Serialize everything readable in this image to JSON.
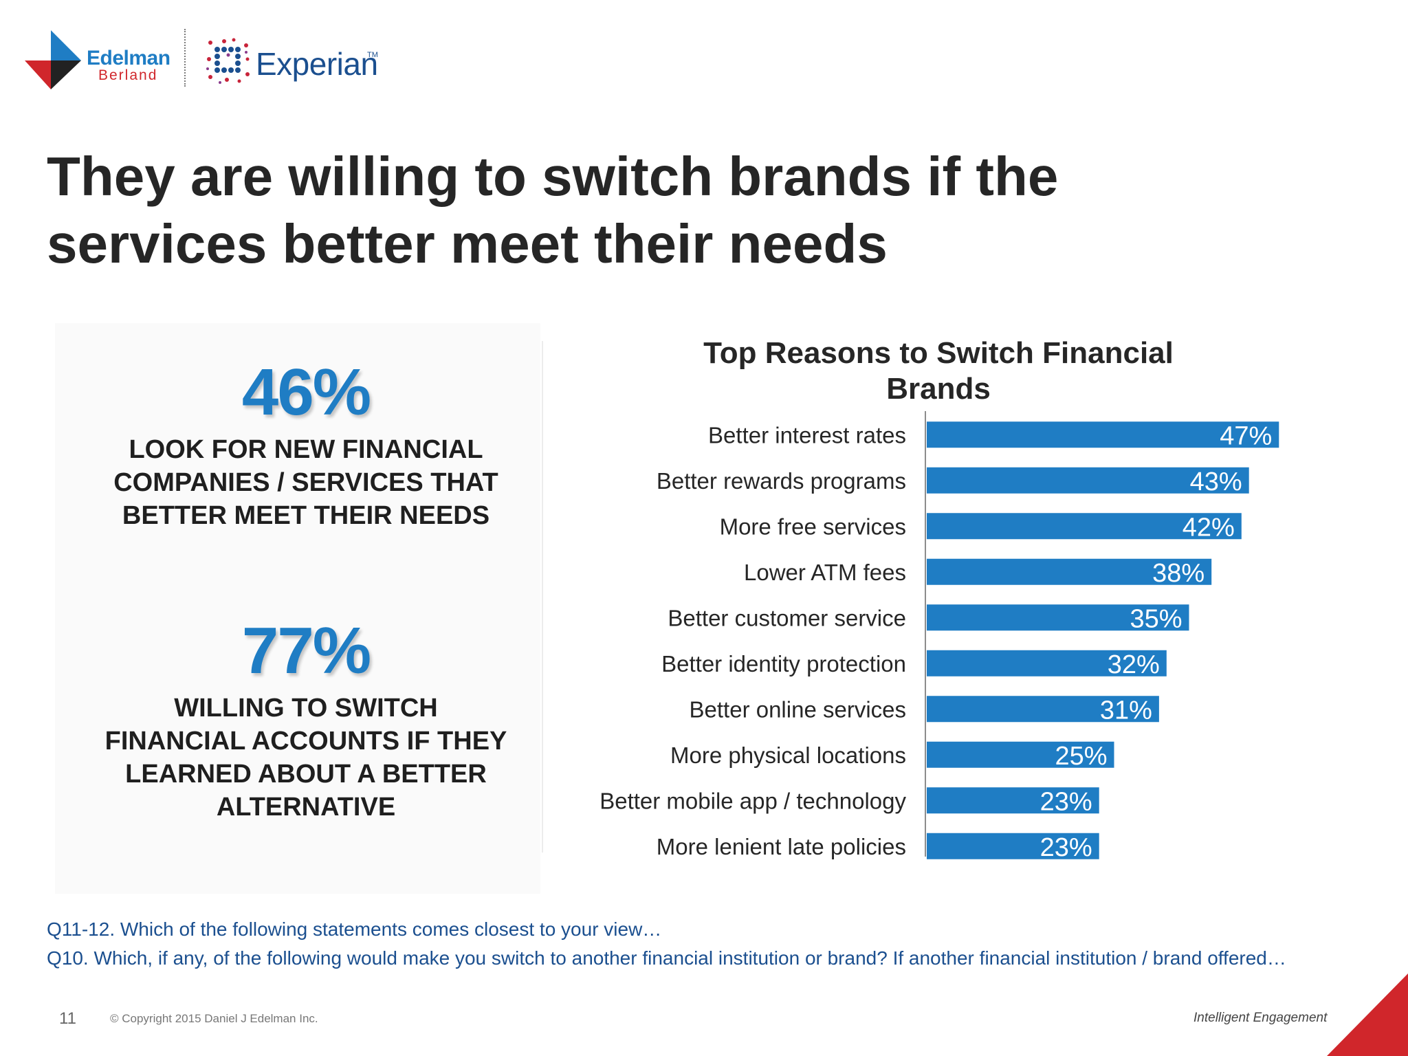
{
  "branding": {
    "edelman_name": "Edelman",
    "edelman_sub": "Berland",
    "experian_name": "Experian",
    "experian_tm": "TM",
    "colors": {
      "edelman_blue": "#1f7dc4",
      "edelman_red": "#d0262b",
      "experian_blue": "#1b4f8f",
      "experian_red": "#c8243a"
    }
  },
  "slide": {
    "title": "They are willing to switch brands if the services better meet their needs",
    "page_number": "11",
    "copyright": "© Copyright 2015 Daniel J Edelman Inc.",
    "tagline": "Intelligent Engagement"
  },
  "stats": [
    {
      "value": "46%",
      "label": "LOOK FOR NEW FINANCIAL COMPANIES / SERVICES THAT BETTER MEET THEIR NEEDS"
    },
    {
      "value": "77%",
      "label": "WILLING TO SWITCH FINANCIAL ACCOUNTS IF THEY LEARNED ABOUT A BETTER ALTERNATIVE"
    }
  ],
  "footnotes": {
    "q1": "Q11-12. Which of the following statements comes closest to your view…",
    "q2": "Q10. Which, if any, of the following would make you switch to another financial institution or brand? If another financial institution / brand offered…"
  },
  "chart_data": {
    "type": "bar",
    "orientation": "horizontal",
    "title": "Top Reasons to Switch Financial Brands",
    "categories": [
      "Better interest rates",
      "Better rewards programs",
      "More free services",
      "Lower ATM fees",
      "Better customer service",
      "Better identity protection",
      "Better online services",
      "More physical locations",
      "Better mobile app / technology",
      "More lenient late policies"
    ],
    "values": [
      47,
      43,
      42,
      38,
      35,
      32,
      31,
      25,
      23,
      23
    ],
    "value_labels": [
      "47%",
      "43%",
      "42%",
      "38%",
      "35%",
      "32%",
      "31%",
      "25%",
      "23%",
      "23%"
    ],
    "unit": "%",
    "xlim": [
      0,
      50
    ],
    "grid": false,
    "bar_color": "#1f7dc4"
  }
}
